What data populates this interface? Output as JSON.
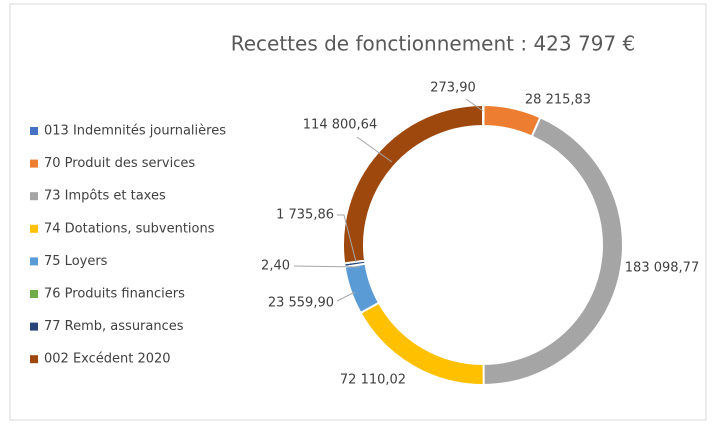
{
  "chart_data": {
    "type": "donut",
    "title": "Recettes de fonctionnement  : 423 797 €",
    "series": [
      {
        "name": "013 Indemnités journalières",
        "color": "#4472c4",
        "value": 273.9,
        "value_label": "273,90"
      },
      {
        "name": "70 Produit des services",
        "color": "#ed7d31",
        "value": 28215.83,
        "value_label": "28 215,83"
      },
      {
        "name": "73 Impôts et taxes",
        "color": "#a5a5a5",
        "value": 183098.77,
        "value_label": "183 098,77"
      },
      {
        "name": "74 Dotations, subventions",
        "color": "#ffc000",
        "value": 72110.02,
        "value_label": "72 110,02"
      },
      {
        "name": "75 Loyers",
        "color": "#5b9bd5",
        "value": 23559.9,
        "value_label": "23 559,90"
      },
      {
        "name": "76 Produits financiers",
        "color": "#70ad47",
        "value": 2.4,
        "value_label": "2,40"
      },
      {
        "name": "77 Remb, assurances",
        "color": "#264478",
        "value": 1735.86,
        "value_label": "1 735,86"
      },
      {
        "name": "002 Excédent 2020",
        "color": "#9e480e",
        "value": 114800.64,
        "value_label": "114 800,64"
      }
    ],
    "legend": "left"
  }
}
